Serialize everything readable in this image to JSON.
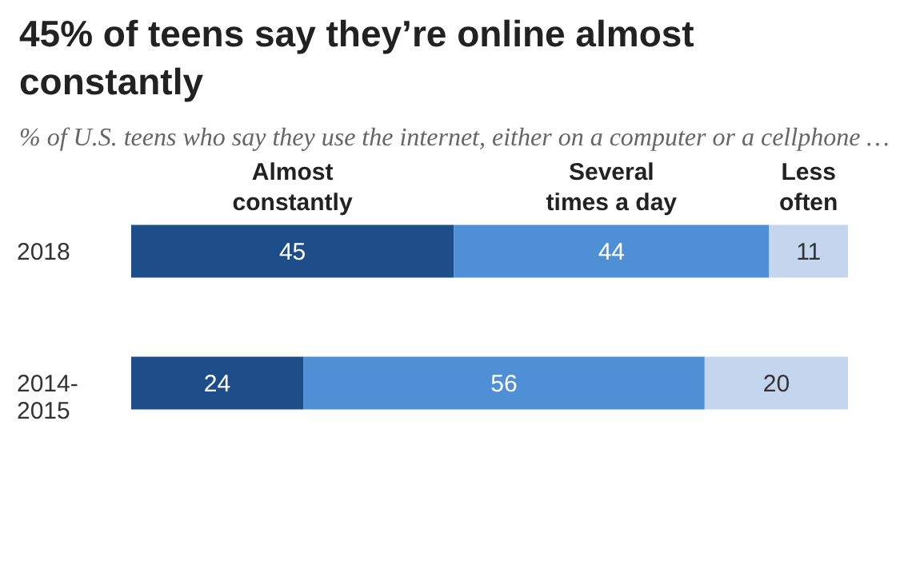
{
  "chart_data": {
    "type": "bar",
    "orientation": "horizontal",
    "stacked": true,
    "data_labels": true,
    "legend": "top",
    "title": "45% of teens say they’re online almost constantly",
    "subtitle": "% of U.S. teens who say they use the internet, either on a computer or a cellphone …",
    "categories": [
      "2018",
      "2014-2015"
    ],
    "series": [
      {
        "name": "Almost constantly",
        "color": "#1d4e89",
        "values": [
          45,
          24
        ]
      },
      {
        "name": "Several times a day",
        "color": "#4f8fd6",
        "values": [
          44,
          56
        ]
      },
      {
        "name": "Less often",
        "color": "#c3d6ee",
        "values": [
          11,
          20
        ]
      }
    ]
  }
}
